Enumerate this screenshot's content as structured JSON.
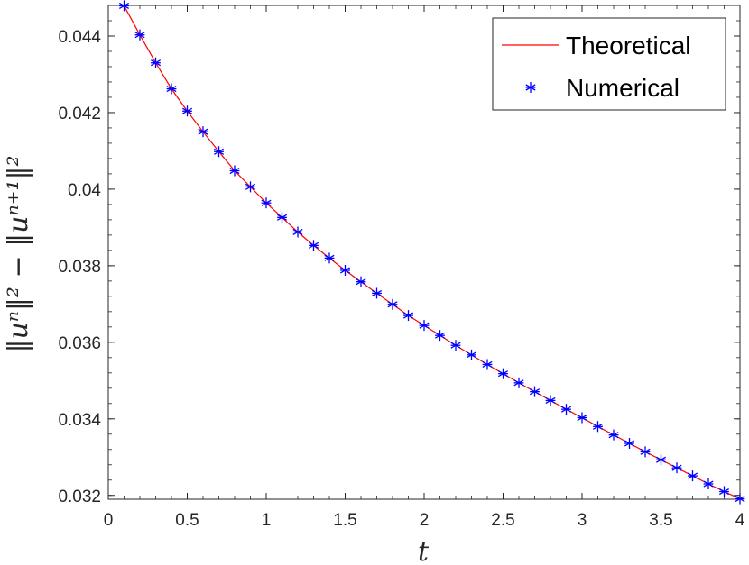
{
  "chart_data": {
    "type": "line",
    "xlabel": "t",
    "ylabel": "‖uⁿ‖² − ‖uⁿ⁺¹‖²",
    "xlim": [
      0,
      4
    ],
    "ylim": [
      0.0319,
      0.0448
    ],
    "x_ticks": [
      0,
      0.5,
      1,
      1.5,
      2,
      2.5,
      3,
      3.5,
      4
    ],
    "x_tick_labels": [
      "0",
      "0.5",
      "1",
      "1.5",
      "2",
      "2.5",
      "3",
      "3.5",
      "4"
    ],
    "y_ticks": [
      0.032,
      0.034,
      0.036,
      0.038,
      0.04,
      0.042,
      0.044
    ],
    "y_tick_labels": [
      "0.032",
      "0.034",
      "0.036",
      "0.038",
      "0.04",
      "0.042",
      "0.044"
    ],
    "grid": false,
    "legend_position": "top-right",
    "series": [
      {
        "name": "Theoretical",
        "style": "line",
        "color": "#ff0000",
        "x": [
          0.1,
          0.2,
          0.3,
          0.4,
          0.5,
          0.6,
          0.7,
          0.8,
          0.9,
          1.0,
          1.1,
          1.2,
          1.3,
          1.4,
          1.5,
          1.6,
          1.7,
          1.8,
          1.9,
          2.0,
          2.1,
          2.2,
          2.3,
          2.4,
          2.5,
          2.6,
          2.7,
          2.8,
          2.9,
          3.0,
          3.1,
          3.2,
          3.3,
          3.4,
          3.5,
          3.6,
          3.7,
          3.8,
          3.9,
          4.0
        ],
        "y": [
          0.04479,
          0.04403,
          0.0433,
          0.04262,
          0.04204,
          0.0415,
          0.04098,
          0.04048,
          0.04006,
          0.03964,
          0.03926,
          0.03888,
          0.03853,
          0.0382,
          0.03788,
          0.03758,
          0.03728,
          0.03699,
          0.0367,
          0.03644,
          0.03618,
          0.03592,
          0.03567,
          0.03542,
          0.03518,
          0.03494,
          0.03471,
          0.03448,
          0.03425,
          0.03403,
          0.0338,
          0.03358,
          0.03336,
          0.03314,
          0.03293,
          0.03272,
          0.03251,
          0.0323,
          0.0321,
          0.03191
        ]
      },
      {
        "name": "Numerical",
        "style": "markers",
        "marker": "*",
        "color": "#0000ff",
        "x": [
          0.1,
          0.2,
          0.3,
          0.4,
          0.5,
          0.6,
          0.7,
          0.8,
          0.9,
          1.0,
          1.1,
          1.2,
          1.3,
          1.4,
          1.5,
          1.6,
          1.7,
          1.8,
          1.9,
          2.0,
          2.1,
          2.2,
          2.3,
          2.4,
          2.5,
          2.6,
          2.7,
          2.8,
          2.9,
          3.0,
          3.1,
          3.2,
          3.3,
          3.4,
          3.5,
          3.6,
          3.7,
          3.8,
          3.9,
          4.0
        ],
        "y": [
          0.04479,
          0.04403,
          0.0433,
          0.04262,
          0.04204,
          0.0415,
          0.04098,
          0.04048,
          0.04006,
          0.03964,
          0.03926,
          0.03888,
          0.03853,
          0.0382,
          0.03788,
          0.03758,
          0.03728,
          0.03699,
          0.0367,
          0.03644,
          0.03618,
          0.03592,
          0.03567,
          0.03542,
          0.03518,
          0.03494,
          0.03471,
          0.03448,
          0.03425,
          0.03403,
          0.0338,
          0.03358,
          0.03336,
          0.03314,
          0.03293,
          0.03272,
          0.03251,
          0.0323,
          0.0321,
          0.03191
        ]
      }
    ]
  }
}
